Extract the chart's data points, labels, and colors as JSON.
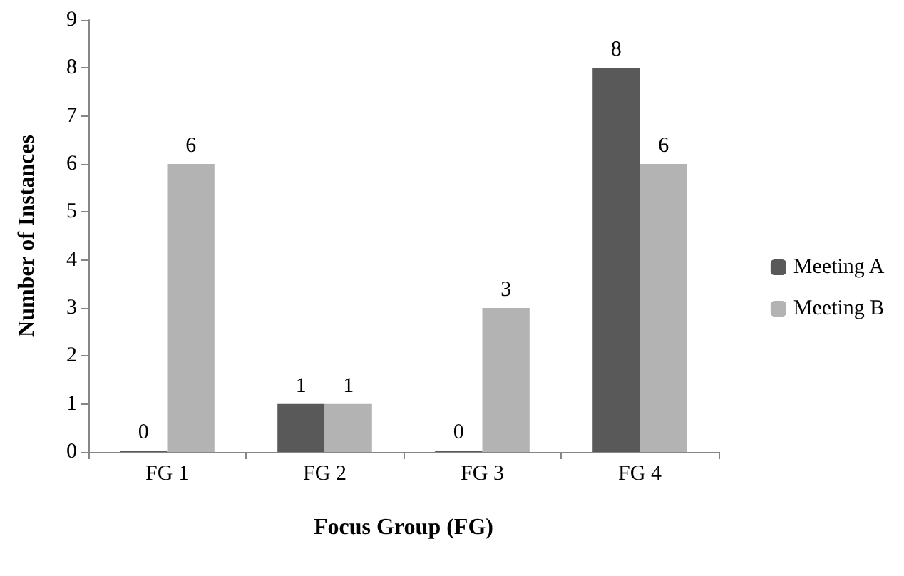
{
  "chart_data": {
    "type": "bar",
    "xlabel": "Focus Group (FG)",
    "ylabel": "Number of Instances",
    "categories": [
      "FG 1",
      "FG 2",
      "FG 3",
      "FG 4"
    ],
    "series": [
      {
        "name": "Meeting A",
        "color": "#595959",
        "values": [
          0,
          1,
          0,
          8
        ]
      },
      {
        "name": "Meeting B",
        "color": "#b3b3b3",
        "values": [
          6,
          1,
          3,
          6
        ]
      }
    ],
    "ylim": [
      0,
      9
    ],
    "yticks": [
      0,
      1,
      2,
      3,
      4,
      5,
      6,
      7,
      8,
      9
    ],
    "grid": false,
    "legend": "right",
    "data_labels": true
  }
}
